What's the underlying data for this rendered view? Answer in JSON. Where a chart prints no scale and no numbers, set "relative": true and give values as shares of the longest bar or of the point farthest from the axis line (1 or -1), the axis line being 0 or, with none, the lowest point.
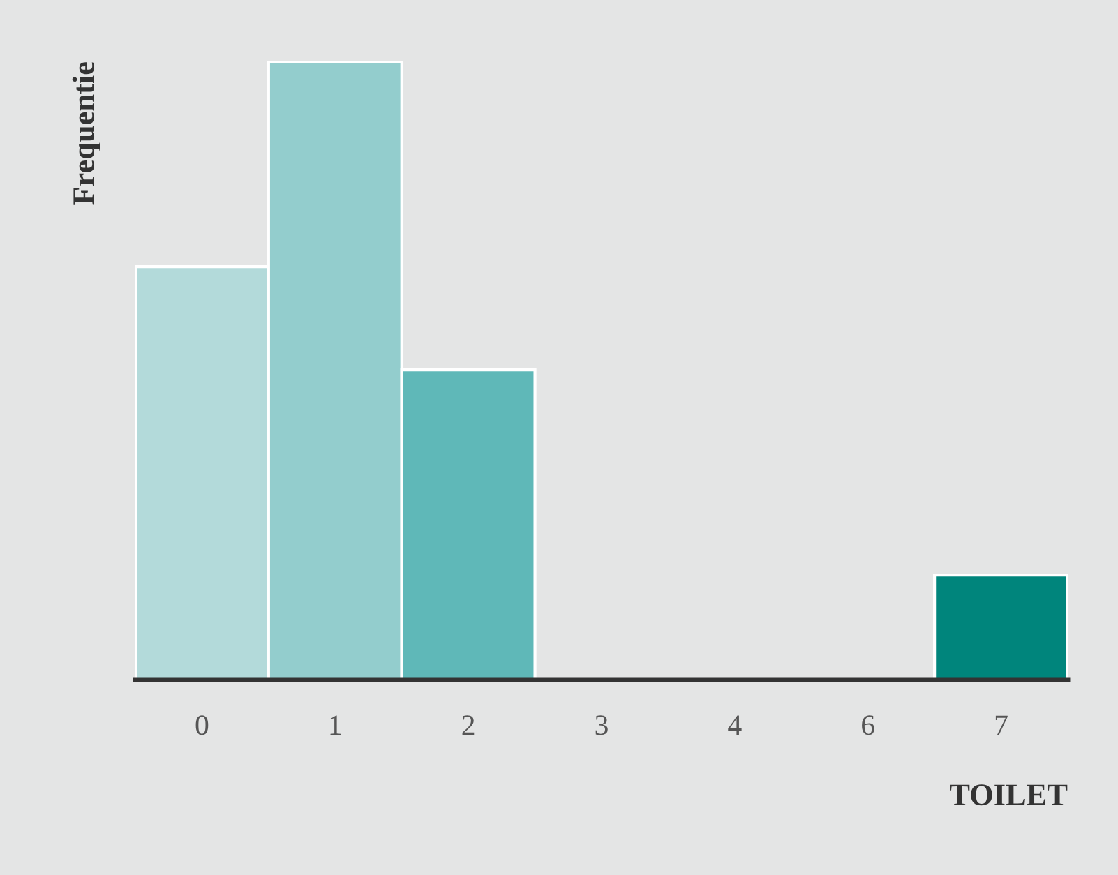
{
  "chart_data": {
    "type": "bar",
    "xlabel": "TOILET",
    "ylabel": "Frequentie",
    "relative": true,
    "categories": [
      "0",
      "1",
      "2",
      "3",
      "4",
      "6",
      "7"
    ],
    "values": [
      0.668,
      1,
      0.501,
      0,
      0,
      0,
      0.169
    ],
    "colors": [
      "#b3dada",
      "#93cdcd",
      "#5fb8b8",
      "#5fb8b8",
      "#5fb8b8",
      "#5fb8b8",
      "#00857c"
    ],
    "grid": false,
    "legend": false
  }
}
